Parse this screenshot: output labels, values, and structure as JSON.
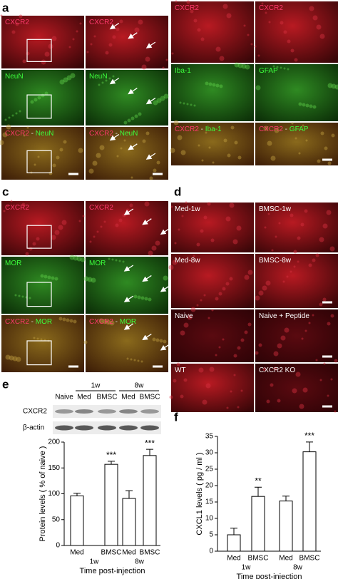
{
  "panels": [
    {
      "label": "a",
      "cells": [
        {
          "image": "red",
          "parts": [
            {
              "text": "CXCR2",
              "color": "#ff3a6e"
            }
          ]
        },
        {
          "image": "red",
          "parts": [
            {
              "text": "CXCR2",
              "color": "#ff3a6e"
            }
          ]
        },
        {
          "image": "green",
          "parts": [
            {
              "text": "NeuN",
              "color": "#3cff3c"
            }
          ]
        },
        {
          "image": "green",
          "parts": [
            {
              "text": "NeuN",
              "color": "#3cff3c"
            }
          ]
        },
        {
          "image": "merge",
          "parts": [
            {
              "text": "CXCR2",
              "color": "#ff3a6e"
            },
            {
              "text": " - ",
              "color": "#dddddd"
            },
            {
              "text": "NeuN",
              "color": "#3cff3c"
            }
          ]
        },
        {
          "image": "merge",
          "parts": [
            {
              "text": "CXCR2",
              "color": "#ff3a6e"
            },
            {
              "text": " - ",
              "color": "#dddddd"
            },
            {
              "text": "NeuN",
              "color": "#3cff3c"
            }
          ]
        }
      ]
    },
    {
      "label": "b",
      "cells": [
        {
          "image": "red",
          "parts": [
            {
              "text": "CXCR2",
              "color": "#ff3a6e"
            }
          ]
        },
        {
          "image": "red",
          "parts": [
            {
              "text": "CXCR2",
              "color": "#ff3a6e"
            }
          ]
        },
        {
          "image": "green",
          "parts": [
            {
              "text": "Iba-1",
              "color": "#3cff3c"
            }
          ]
        },
        {
          "image": "green",
          "parts": [
            {
              "text": "GFAP",
              "color": "#3cff3c"
            }
          ]
        },
        {
          "image": "merge",
          "parts": [
            {
              "text": "CXCR2",
              "color": "#ff3a6e"
            },
            {
              "text": " - ",
              "color": "#dddddd"
            },
            {
              "text": "Iba-1",
              "color": "#3cff3c"
            }
          ]
        },
        {
          "image": "merge",
          "parts": [
            {
              "text": "CXCR2",
              "color": "#ff3a6e"
            },
            {
              "text": " - ",
              "color": "#dddddd"
            },
            {
              "text": "GFAP",
              "color": "#3cff3c"
            }
          ]
        }
      ]
    },
    {
      "label": "c",
      "cells": [
        {
          "image": "red",
          "parts": [
            {
              "text": "CXCR2",
              "color": "#ff3a6e"
            }
          ]
        },
        {
          "image": "red",
          "parts": [
            {
              "text": "CXCR2",
              "color": "#ff3a6e"
            }
          ]
        },
        {
          "image": "green",
          "parts": [
            {
              "text": "MOR",
              "color": "#3cff3c"
            }
          ]
        },
        {
          "image": "green",
          "parts": [
            {
              "text": "MOR",
              "color": "#3cff3c"
            }
          ]
        },
        {
          "image": "merge",
          "parts": [
            {
              "text": "CXCR2",
              "color": "#ff3a6e"
            },
            {
              "text": " - ",
              "color": "#dddddd"
            },
            {
              "text": "MOR",
              "color": "#3cff3c"
            }
          ]
        },
        {
          "image": "merge",
          "parts": [
            {
              "text": "CXCR2",
              "color": "#ff3a6e"
            },
            {
              "text": " - ",
              "color": "#dddddd"
            },
            {
              "text": "MOR",
              "color": "#3cff3c"
            }
          ]
        }
      ]
    },
    {
      "label": "d",
      "cells": [
        {
          "image": "red",
          "parts": [
            {
              "text": "Med-1w",
              "color": "#ffffff"
            }
          ]
        },
        {
          "image": "red",
          "parts": [
            {
              "text": "BMSC-1w",
              "color": "#ffffff"
            }
          ]
        },
        {
          "image": "red",
          "parts": [
            {
              "text": "Med-8w",
              "color": "#ffffff"
            }
          ]
        },
        {
          "image": "red",
          "parts": [
            {
              "text": "BMSC-8w",
              "color": "#ffffff"
            }
          ]
        },
        {
          "image": "dark",
          "parts": [
            {
              "text": "Naive",
              "color": "#ffffff"
            }
          ]
        },
        {
          "image": "dark",
          "parts": [
            {
              "text": "Naive + Peptide",
              "color": "#ffffff"
            }
          ]
        },
        {
          "image": "red",
          "parts": [
            {
              "text": "WT",
              "color": "#ffffff"
            }
          ]
        },
        {
          "image": "dark",
          "parts": [
            {
              "text": "CXCR2 KO",
              "color": "#ffffff"
            }
          ]
        }
      ]
    }
  ],
  "blot": {
    "label": "e",
    "times": [
      "1w",
      "8w"
    ],
    "lanes": [
      "Naive",
      "Med",
      "BMSC",
      "Med",
      "BMSC"
    ],
    "rows": [
      "CXCR2",
      "β-actin"
    ]
  },
  "chart_data": [
    {
      "type": "bar",
      "ylabel": "Protein levels ( % of naive )",
      "xlabel": "Time post-injection",
      "categories": [
        "Med",
        "BMSC",
        "Med",
        "BMSC"
      ],
      "groups": [
        "1w",
        "8w"
      ],
      "values": [
        96,
        157,
        91,
        174
      ],
      "errors": [
        5,
        6,
        15,
        12
      ],
      "annotations": [
        null,
        "***",
        null,
        "***"
      ],
      "ylim": [
        0,
        200
      ],
      "yticks": [
        0,
        50,
        100,
        150,
        200
      ],
      "color": "#ffffff"
    },
    {
      "type": "bar",
      "label": "f",
      "ylabel": "CXCL1 levels ( pg / ml )",
      "xlabel": "Time post-injection",
      "categories": [
        "Med",
        "BMSC",
        "Med",
        "BMSC"
      ],
      "groups": [
        "1w",
        "8w"
      ],
      "values": [
        5,
        16.7,
        15.3,
        30.3
      ],
      "errors": [
        2,
        2.8,
        1.5,
        3
      ],
      "annotations": [
        null,
        "**",
        null,
        "***"
      ],
      "ylim": [
        0,
        35
      ],
      "yticks": [
        0,
        5,
        10,
        15,
        20,
        25,
        30,
        35
      ],
      "color": "#ffffff"
    }
  ]
}
